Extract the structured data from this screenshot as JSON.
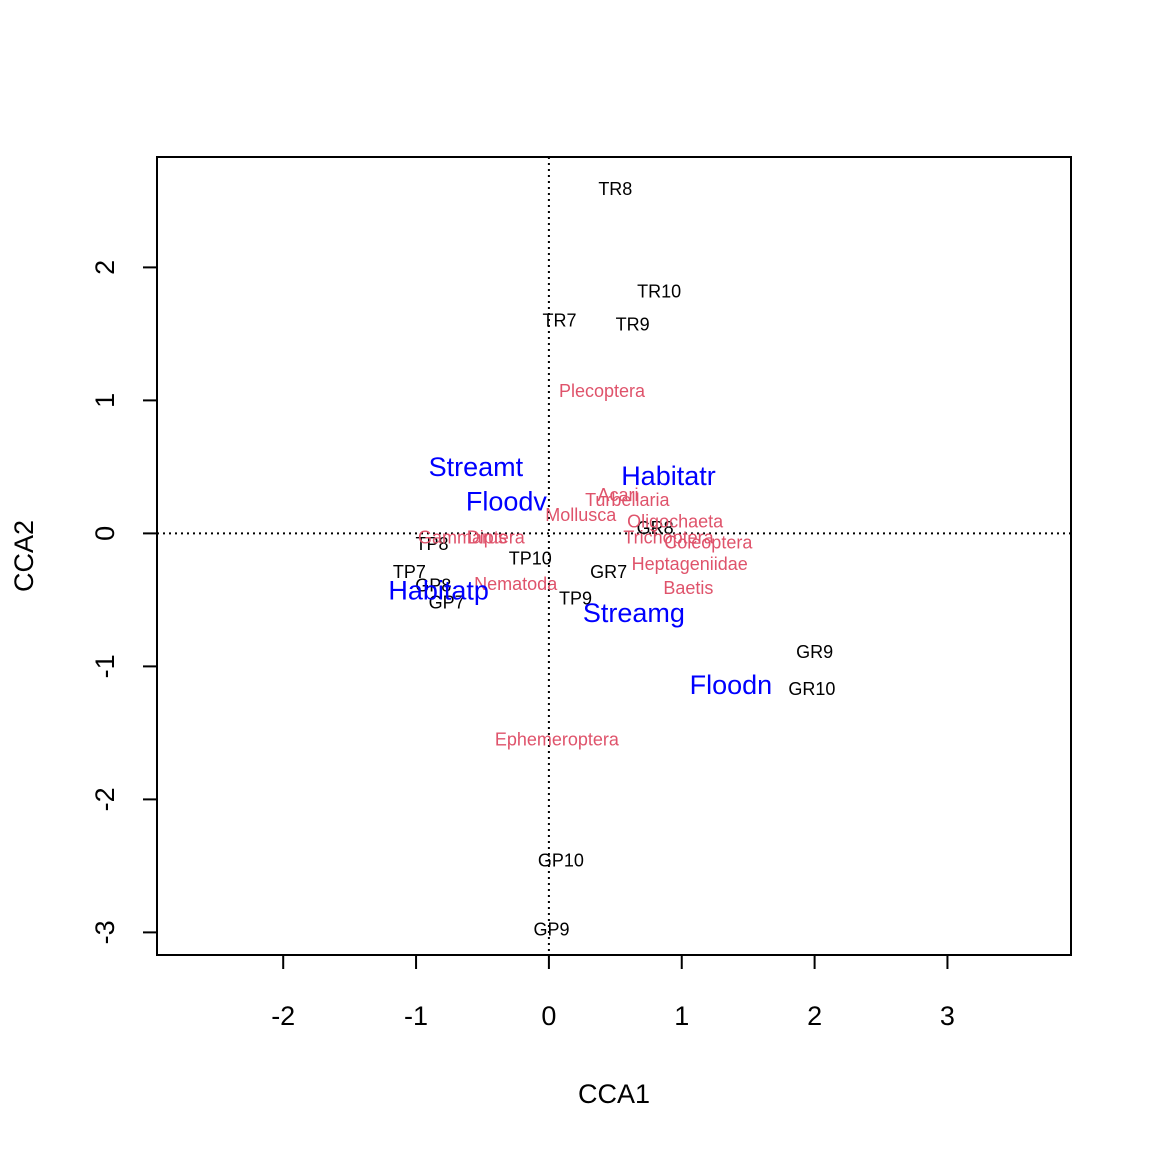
{
  "chart_data": {
    "type": "scatter",
    "title": "",
    "xlabel": "CCA1",
    "ylabel": "CCA2",
    "xlim": [
      -2.95,
      3.93
    ],
    "ylim": [
      -3.17,
      2.83
    ],
    "xticks": [
      -2,
      -1,
      0,
      1,
      2,
      3
    ],
    "yticks": [
      -3,
      -2,
      -1,
      0,
      1,
      2
    ],
    "reference_lines": {
      "x": 0,
      "y": 0,
      "style": "dotted"
    },
    "colors": {
      "sites": "#000000",
      "species": "#DF536B",
      "environment": "#0000FF"
    },
    "series": [
      {
        "name": "sites",
        "points": [
          {
            "label": "TR8",
            "x": 0.5,
            "y": 2.59
          },
          {
            "label": "TR10",
            "x": 0.83,
            "y": 1.82
          },
          {
            "label": "TR7",
            "x": 0.08,
            "y": 1.6
          },
          {
            "label": "TR9",
            "x": 0.63,
            "y": 1.57
          },
          {
            "label": "GR8",
            "x": 0.8,
            "y": 0.04
          },
          {
            "label": "TP8",
            "x": -0.88,
            "y": -0.08
          },
          {
            "label": "TP10",
            "x": -0.14,
            "y": -0.19
          },
          {
            "label": "TP7",
            "x": -1.05,
            "y": -0.29
          },
          {
            "label": "GR7",
            "x": 0.45,
            "y": -0.29
          },
          {
            "label": "GP8",
            "x": -0.87,
            "y": -0.39
          },
          {
            "label": "TP9",
            "x": 0.2,
            "y": -0.49
          },
          {
            "label": "GP7",
            "x": -0.77,
            "y": -0.52
          },
          {
            "label": "GR9",
            "x": 2.0,
            "y": -0.89
          },
          {
            "label": "GR10",
            "x": 1.98,
            "y": -1.17
          },
          {
            "label": "GP10",
            "x": 0.09,
            "y": -2.46
          },
          {
            "label": "GP9",
            "x": 0.02,
            "y": -2.98
          }
        ]
      },
      {
        "name": "species",
        "points": [
          {
            "label": "Plecoptera",
            "x": 0.4,
            "y": 1.07
          },
          {
            "label": "Acari",
            "x": 0.52,
            "y": 0.29
          },
          {
            "label": "Turbellaria",
            "x": 0.59,
            "y": 0.25
          },
          {
            "label": "Mollusca",
            "x": 0.24,
            "y": 0.14
          },
          {
            "label": "Oligochaeta",
            "x": 0.95,
            "y": 0.09
          },
          {
            "label": "Trichoptera",
            "x": 0.9,
            "y": -0.03
          },
          {
            "label": "Coleoptera",
            "x": 1.2,
            "y": -0.07
          },
          {
            "label": "Gammarus",
            "x": -0.65,
            "y": -0.03
          },
          {
            "label": "Diptera",
            "x": -0.4,
            "y": -0.03
          },
          {
            "label": "Heptageniidae",
            "x": 1.06,
            "y": -0.23
          },
          {
            "label": "Nematoda",
            "x": -0.25,
            "y": -0.38
          },
          {
            "label": "Baetis",
            "x": 1.05,
            "y": -0.41
          },
          {
            "label": "Ephemeroptera",
            "x": 0.06,
            "y": -1.55
          }
        ]
      },
      {
        "name": "environment",
        "points": [
          {
            "label": "Streamt",
            "x": -0.55,
            "y": 0.5
          },
          {
            "label": "Habitatr",
            "x": 0.9,
            "y": 0.43
          },
          {
            "label": "Floodv",
            "x": -0.32,
            "y": 0.24
          },
          {
            "label": "Habitatp",
            "x": -0.83,
            "y": -0.43
          },
          {
            "label": "Streamg",
            "x": 0.64,
            "y": -0.6
          },
          {
            "label": "Floodn",
            "x": 1.37,
            "y": -1.14
          }
        ]
      }
    ]
  }
}
